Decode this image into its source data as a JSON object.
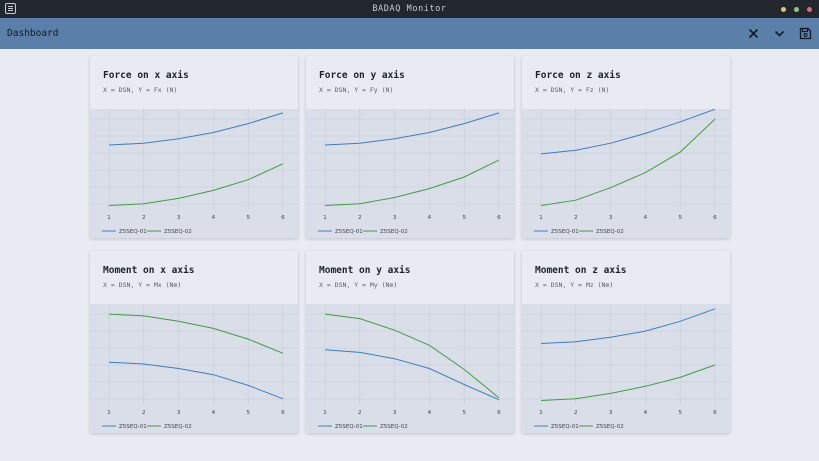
{
  "window": {
    "title": "BADAQ Monitor",
    "controls": [
      {
        "name": "minimize",
        "color": "#e5c07b"
      },
      {
        "name": "maximize",
        "color": "#98c379"
      },
      {
        "name": "close",
        "color": "#e06c75"
      }
    ]
  },
  "appbar": {
    "title": "Dashboard",
    "icons": [
      "close-icon",
      "chevron-down-icon",
      "save-icon"
    ]
  },
  "colors": {
    "series_1": "#3a7fc4",
    "series_2": "#3f9f3f",
    "grid": "#c6ccd8"
  },
  "charts": [
    {
      "title": "Force on x axis",
      "subtitle": "X = DSN, Y = Fx (N)",
      "chart_data": {
        "type": "line",
        "x": [
          1,
          2,
          3,
          4,
          5,
          6
        ],
        "ylim": [
          -1,
          10
        ],
        "series": [
          {
            "name": "Z5SEQ-01",
            "values": [
              6.3,
              6.5,
              7.0,
              7.7,
              8.7,
              9.9
            ]
          },
          {
            "name": "Z5SEQ-02",
            "values": [
              -0.5,
              -0.3,
              0.3,
              1.2,
              2.4,
              4.2
            ]
          }
        ]
      }
    },
    {
      "title": "Force on y axis",
      "subtitle": "X = DSN, Y = Fy (N)",
      "chart_data": {
        "type": "line",
        "x": [
          1,
          2,
          3,
          4,
          5,
          6
        ],
        "ylim": [
          -1,
          10
        ],
        "series": [
          {
            "name": "Z5SEQ-01",
            "values": [
              6.3,
              6.5,
              7.0,
              7.7,
              8.7,
              9.9
            ]
          },
          {
            "name": "Z5SEQ-02",
            "values": [
              -0.5,
              -0.3,
              0.4,
              1.4,
              2.7,
              4.6
            ]
          }
        ]
      }
    },
    {
      "title": "Force on z axis",
      "subtitle": "X = DSN, Y = Fz (N)",
      "chart_data": {
        "type": "line",
        "x": [
          1,
          2,
          3,
          4,
          5,
          6
        ],
        "ylim": [
          -1,
          10
        ],
        "series": [
          {
            "name": "Z5SEQ-01",
            "values": [
              5.3,
              5.7,
              6.5,
              7.6,
              8.9,
              10.3
            ]
          },
          {
            "name": "Z5SEQ-02",
            "values": [
              -0.5,
              0.1,
              1.5,
              3.2,
              5.5,
              9.2
            ]
          }
        ]
      }
    },
    {
      "title": "Moment on x axis",
      "subtitle": "X = DSN, Y = Mx (Nm)",
      "chart_data": {
        "type": "line",
        "x": [
          1,
          2,
          3,
          4,
          5,
          6
        ],
        "ylim": [
          -1,
          10
        ],
        "series": [
          {
            "name": "Z5SEQ-01",
            "values": [
              3.8,
              3.6,
              3.1,
              2.4,
              1.2,
              -0.3
            ]
          },
          {
            "name": "Z5SEQ-02",
            "values": [
              9.2,
              9.0,
              8.4,
              7.6,
              6.4,
              4.8
            ]
          }
        ]
      }
    },
    {
      "title": "Moment on y axis",
      "subtitle": "X = DSN, Y = My (Nm)",
      "chart_data": {
        "type": "line",
        "x": [
          1,
          2,
          3,
          4,
          5,
          6
        ],
        "ylim": [
          -1,
          10
        ],
        "series": [
          {
            "name": "Z5SEQ-01",
            "values": [
              5.2,
              4.9,
              4.2,
              3.1,
              1.3,
              -0.4
            ]
          },
          {
            "name": "Z5SEQ-02",
            "values": [
              9.2,
              8.7,
              7.4,
              5.7,
              3.0,
              -0.2
            ]
          }
        ]
      }
    },
    {
      "title": "Moment on z axis",
      "subtitle": "X = DSN, Y = Mz (Nm)",
      "chart_data": {
        "type": "line",
        "x": [
          1,
          2,
          3,
          4,
          5,
          6
        ],
        "ylim": [
          -1,
          10
        ],
        "series": [
          {
            "name": "Z5SEQ-01",
            "values": [
              5.9,
              6.1,
              6.6,
              7.3,
              8.4,
              9.8
            ]
          },
          {
            "name": "Z5SEQ-02",
            "values": [
              -0.5,
              -0.3,
              0.3,
              1.1,
              2.1,
              3.5
            ]
          }
        ]
      }
    }
  ]
}
